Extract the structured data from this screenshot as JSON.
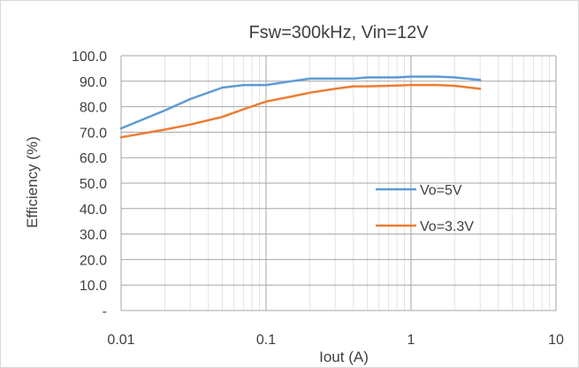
{
  "chart_data": {
    "type": "line",
    "title": "Fsw=300kHz, Vin=12V",
    "xlabel": "Iout (A)",
    "ylabel": "Efficiency (%)",
    "x_scale": "log",
    "xlim": [
      0.01,
      10
    ],
    "ylim": [
      0,
      100
    ],
    "x_ticks": [
      0.01,
      0.1,
      1,
      10
    ],
    "x_tick_labels": [
      "0.01",
      "0.1",
      "1",
      "10"
    ],
    "y_ticks": [
      0,
      10,
      20,
      30,
      40,
      50,
      60,
      70,
      80,
      90,
      100
    ],
    "y_tick_labels": [
      "-",
      "10.0",
      "20.0",
      "30.0",
      "40.0",
      "50.0",
      "60.0",
      "70.0",
      "80.0",
      "90.0",
      "100.0"
    ],
    "grid": {
      "major": true,
      "minor_x": true
    },
    "legend_position": "center-right",
    "series": [
      {
        "name": "Vo=5V",
        "color": "#5b9bd5",
        "points": [
          [
            0.01,
            71.5
          ],
          [
            0.02,
            78.5
          ],
          [
            0.03,
            83
          ],
          [
            0.05,
            87.5
          ],
          [
            0.07,
            88.5
          ],
          [
            0.1,
            88.5
          ],
          [
            0.15,
            90
          ],
          [
            0.2,
            91
          ],
          [
            0.3,
            91
          ],
          [
            0.4,
            91
          ],
          [
            0.5,
            91.5
          ],
          [
            0.6,
            91.5
          ],
          [
            0.8,
            91.5
          ],
          [
            1,
            91.8
          ],
          [
            1.5,
            91.8
          ],
          [
            2,
            91.5
          ],
          [
            3,
            90.5
          ]
        ]
      },
      {
        "name": "Vo=3.3V",
        "color": "#ed7d31",
        "points": [
          [
            0.01,
            68
          ],
          [
            0.02,
            71
          ],
          [
            0.03,
            73
          ],
          [
            0.05,
            76
          ],
          [
            0.07,
            79
          ],
          [
            0.1,
            82
          ],
          [
            0.15,
            84
          ],
          [
            0.2,
            85.5
          ],
          [
            0.3,
            87
          ],
          [
            0.4,
            88
          ],
          [
            0.5,
            88
          ],
          [
            0.7,
            88.2
          ],
          [
            1,
            88.5
          ],
          [
            1.5,
            88.5
          ],
          [
            2,
            88.2
          ],
          [
            3,
            87
          ]
        ]
      }
    ]
  }
}
